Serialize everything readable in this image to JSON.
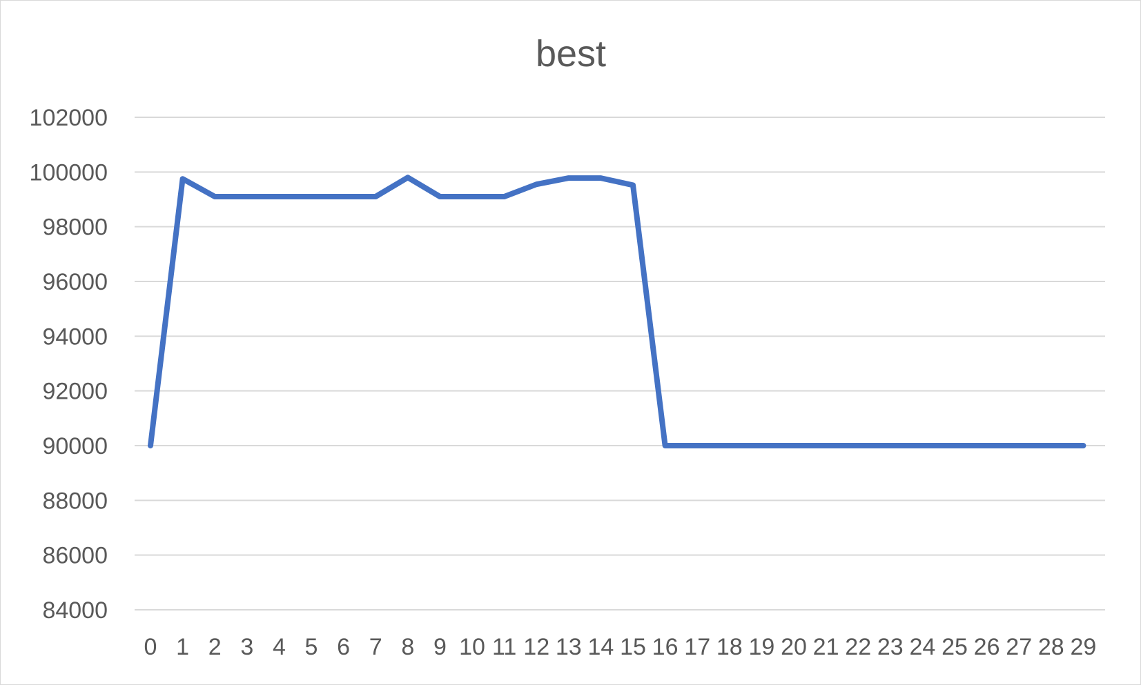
{
  "chart_data": {
    "type": "line",
    "title": "best",
    "xlabel": "",
    "ylabel": "",
    "categories": [
      "0",
      "1",
      "2",
      "3",
      "4",
      "5",
      "6",
      "7",
      "8",
      "9",
      "10",
      "11",
      "12",
      "13",
      "14",
      "15",
      "16",
      "17",
      "18",
      "19",
      "20",
      "21",
      "22",
      "23",
      "24",
      "25",
      "26",
      "27",
      "28",
      "29"
    ],
    "series": [
      {
        "color": "#4472c4",
        "values": [
          90000,
          99750,
          99100,
          99100,
          99100,
          99100,
          99100,
          99100,
          99800,
          99100,
          99100,
          99100,
          99550,
          99780,
          99780,
          99520,
          90000,
          90000,
          90000,
          90000,
          90000,
          90000,
          90000,
          90000,
          90000,
          90000,
          90000,
          90000,
          90000,
          90000
        ]
      }
    ],
    "ylim": [
      84000,
      102000
    ],
    "yticks": [
      "102000",
      "100000",
      "98000",
      "96000",
      "94000",
      "92000",
      "90000",
      "88000",
      "86000",
      "84000"
    ],
    "grid": true,
    "legend": "none"
  }
}
